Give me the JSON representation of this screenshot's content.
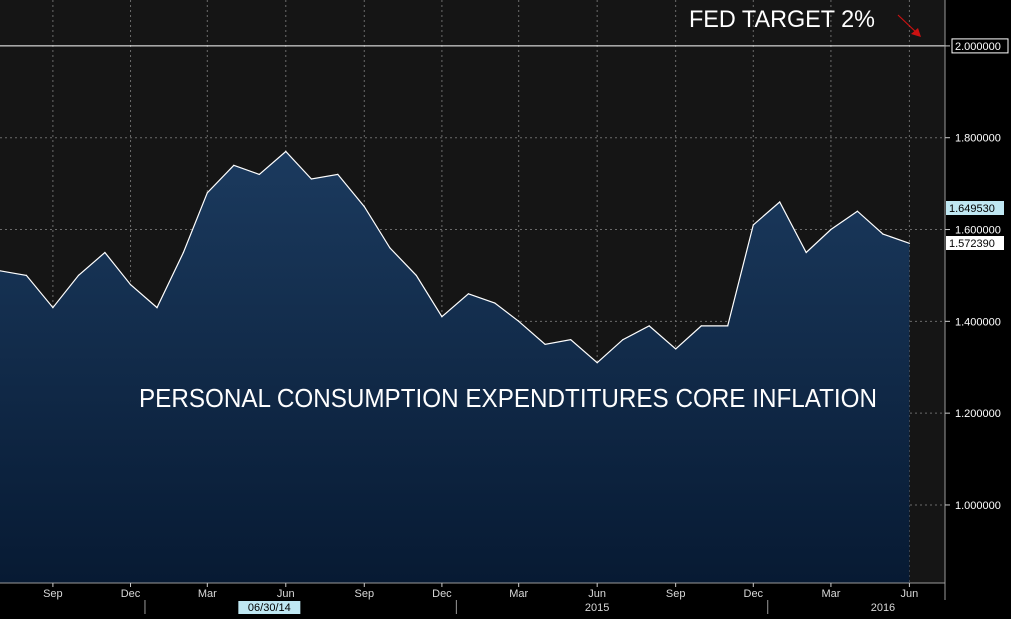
{
  "chart_data": {
    "type": "area",
    "title": "PERSONAL CONSUMPTION EXPENDTITURES CORE INFLATION",
    "target_annotation": "FED TARGET 2%",
    "target_value": 2.0,
    "target_value_label": "2.000000",
    "xlabel": "",
    "ylabel": "",
    "ylim": [
      0.83,
      2.1
    ],
    "grid": true,
    "x_start": "2013-07",
    "x_end": "2016-07",
    "yticks": [
      {
        "value": 1.0,
        "label": "1.000000"
      },
      {
        "value": 1.2,
        "label": "1.200000"
      },
      {
        "value": 1.4,
        "label": "1.400000"
      },
      {
        "value": 1.6,
        "label": "1.600000"
      },
      {
        "value": 1.8,
        "label": "1.800000"
      },
      {
        "value": 2.0,
        "label": "2.000000"
      }
    ],
    "xticks": [
      {
        "label": "Sep",
        "x": "2013-09"
      },
      {
        "label": "Dec",
        "x": "2013-12"
      },
      {
        "label": "Mar",
        "x": "2014-03"
      },
      {
        "label": "Jun",
        "x": "2014-06"
      },
      {
        "label": "Sep",
        "x": "2014-09"
      },
      {
        "label": "Dec",
        "x": "2014-12"
      },
      {
        "label": "Mar",
        "x": "2015-03"
      },
      {
        "label": "Jun",
        "x": "2015-06"
      },
      {
        "label": "Sep",
        "x": "2015-09"
      },
      {
        "label": "Dec",
        "x": "2015-12"
      },
      {
        "label": "Mar",
        "x": "2016-03"
      },
      {
        "label": "Jun",
        "x": "2016-06"
      }
    ],
    "year_labels": [
      {
        "label": "2015",
        "x": "2015-06"
      },
      {
        "label": "2016",
        "x": "2016-05"
      }
    ],
    "date_marker": {
      "label": "06/30/14",
      "x": "2014-05"
    },
    "last_values": [
      {
        "label": "1.649530",
        "value": 1.64953,
        "style": "highlight"
      },
      {
        "label": "1.572390",
        "value": 1.57239,
        "style": "plain"
      }
    ],
    "series": [
      {
        "x": [
          "2013-07",
          "2013-08",
          "2013-09",
          "2013-10",
          "2013-11",
          "2013-12",
          "2014-01",
          "2014-02",
          "2014-03",
          "2014-04",
          "2014-05",
          "2014-06",
          "2014-07",
          "2014-08",
          "2014-09",
          "2014-10",
          "2014-11",
          "2014-12",
          "2015-01",
          "2015-02",
          "2015-03",
          "2015-04",
          "2015-05",
          "2015-06",
          "2015-07",
          "2015-08",
          "2015-09",
          "2015-10",
          "2015-11",
          "2015-12",
          "2016-01",
          "2016-02",
          "2016-03",
          "2016-04",
          "2016-05",
          "2016-06"
        ],
        "values": [
          1.51,
          1.5,
          1.43,
          1.5,
          1.55,
          1.48,
          1.43,
          1.55,
          1.68,
          1.74,
          1.72,
          1.77,
          1.71,
          1.72,
          1.65,
          1.56,
          1.5,
          1.41,
          1.46,
          1.44,
          1.4,
          1.35,
          1.36,
          1.31,
          1.36,
          1.39,
          1.34,
          1.39,
          1.39,
          1.61,
          1.66,
          1.55,
          1.6,
          1.64,
          1.59,
          1.57
        ]
      }
    ],
    "colors": {
      "background": "#000000",
      "plot_background": "#151515",
      "area_top": "#1b3a5e",
      "area_bottom": "#071a33",
      "line": "#ffffff",
      "grid": "#6b6b6b",
      "target_line": "#ffffff",
      "arrow": "#cc1111",
      "highlight_label_bg": "#bfe7f2",
      "plain_label_bg": "#ffffff",
      "date_marker_bg": "#bfe7f2"
    }
  }
}
